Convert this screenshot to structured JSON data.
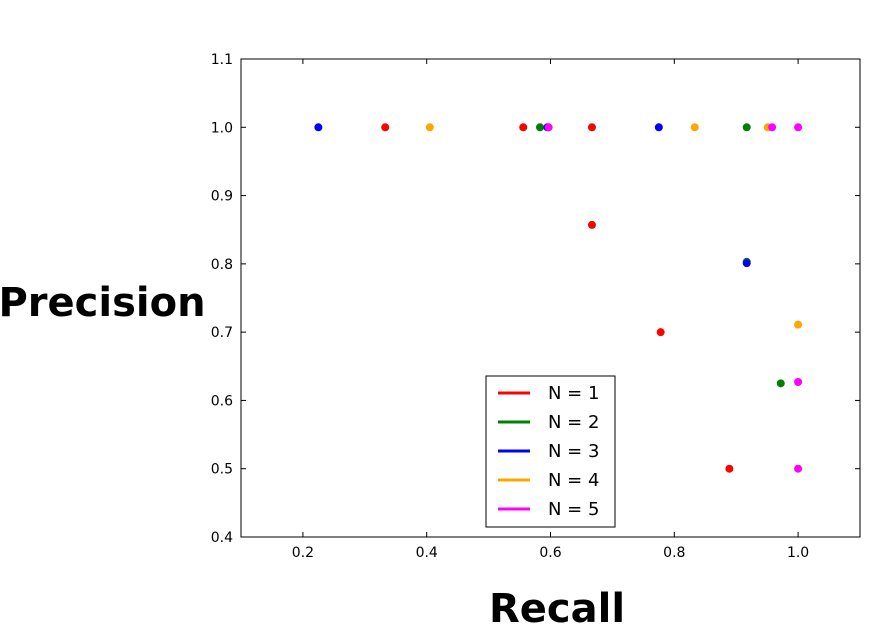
{
  "chart_data": {
    "type": "scatter",
    "title": "",
    "xlabel": "Recall",
    "ylabel": "Precision",
    "xlim": [
      0.1,
      1.1
    ],
    "ylim": [
      0.4,
      1.1
    ],
    "x_ticks": [
      0.2,
      0.4,
      0.6,
      0.8,
      1.0
    ],
    "x_tick_labels": [
      "0.2",
      "0.4",
      "0.6",
      "0.8",
      "1.0"
    ],
    "y_ticks": [
      0.4,
      0.5,
      0.6,
      0.7,
      0.8,
      0.9,
      1.0,
      1.1
    ],
    "y_tick_labels": [
      "0.4",
      "0.5",
      "0.6",
      "0.7",
      "0.8",
      "0.9",
      "1.0",
      "1.1"
    ],
    "grid": false,
    "legend_position": "bottom-center",
    "series": [
      {
        "name": "N = 1",
        "color": "#ff0000",
        "points": [
          [
            0.333,
            1.0
          ],
          [
            0.556,
            1.0
          ],
          [
            0.667,
            1.0
          ],
          [
            0.667,
            0.857
          ],
          [
            0.778,
            0.7
          ],
          [
            0.889,
            0.5
          ]
        ]
      },
      {
        "name": "N = 2",
        "color": "#008000",
        "points": [
          [
            0.583,
            1.0
          ],
          [
            0.917,
            1.0
          ],
          [
            0.917,
            0.803
          ],
          [
            0.972,
            0.625
          ]
        ]
      },
      {
        "name": "N = 3",
        "color": "#0000ff",
        "points": [
          [
            0.225,
            1.0
          ],
          [
            0.595,
            1.0
          ],
          [
            0.775,
            1.0
          ],
          [
            0.917,
            0.801
          ]
        ]
      },
      {
        "name": "N = 4",
        "color": "#ffa500",
        "points": [
          [
            0.405,
            1.0
          ],
          [
            0.833,
            1.0
          ],
          [
            0.951,
            1.0
          ],
          [
            1.0,
            0.711
          ]
        ]
      },
      {
        "name": "N = 5",
        "color": "#ff00ff",
        "points": [
          [
            0.597,
            1.0
          ],
          [
            0.958,
            1.0
          ],
          [
            1.0,
            1.0
          ],
          [
            1.0,
            0.627
          ],
          [
            1.0,
            0.5
          ]
        ]
      }
    ]
  }
}
